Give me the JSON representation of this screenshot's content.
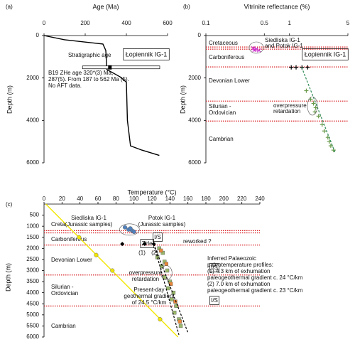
{
  "chart_data": [
    {
      "type": "line",
      "panel": "(a)",
      "xlabel": "Age (Ma)",
      "ylabel": "Depth (m)",
      "xlim": [
        0,
        600
      ],
      "xticks": [
        0,
        200,
        400,
        600
      ],
      "ylim": [
        0,
        6000
      ],
      "yticks": [
        0,
        2000,
        4000,
        6000
      ],
      "y_inverted": true,
      "x_axis_position": "top",
      "series": [
        {
          "name": "Stratigraphic age",
          "color": "#000000",
          "x": [
            0,
            100,
            286,
            300,
            305,
            370,
            400,
            405,
            420,
            475,
            560
          ],
          "values": [
            0,
            200,
            400,
            700,
            1600,
            1950,
            2200,
            4000,
            5200,
            5400,
            5650
          ]
        }
      ],
      "zhe": {
        "value": 320,
        "range": [
          187,
          562
        ],
        "depth": 1500
      },
      "well_label": "Łopiennik IG-1",
      "note": [
        "B19 ZHe age 320*(3) Ma,",
        "287(5). From 187 to 562 Ma (5).",
        "No AFT data."
      ]
    },
    {
      "type": "scatter",
      "panel": "(b)",
      "xlabel": "Vitrinite reflectance (%)",
      "ylabel": "Depth (m)",
      "xscale": "log",
      "xlim": [
        0.1,
        5
      ],
      "xticks": [
        0.1,
        0.5,
        1,
        5
      ],
      "ylim": [
        0,
        6000
      ],
      "yticks": [
        0,
        2000,
        4000,
        6000
      ],
      "y_inverted": true,
      "x_axis_position": "top",
      "layers": [
        "Cretaceous",
        "Carboniferous",
        "Devonian Lower",
        [
          "Silurian -",
          "Ordovician"
        ],
        "Cambrian"
      ],
      "boundaries": [
        540,
        640,
        1480,
        3090,
        4030
      ],
      "boundary_color": "#d7191c",
      "series": [
        {
          "kind": "points",
          "marker": "x",
          "color": "#cc33cc",
          "x": [
            0.369,
            0.399,
            0.432,
            0.38
          ],
          "values": [
            600,
            650,
            700,
            680
          ]
        },
        {
          "kind": "points",
          "marker": "+",
          "color": "#000000",
          "x": [
            1.05,
            1.2,
            1.41,
            1.65
          ],
          "values": [
            1500,
            1500,
            1500,
            1500
          ]
        },
        {
          "kind": "points",
          "marker": "+",
          "color": "#6a9a4a",
          "x": [
            1.59,
            1.79,
            1.94,
            2.06,
            2.02,
            2.23,
            2.46,
            2.61,
            2.88,
            2.99,
            3.12,
            3.37
          ],
          "values": [
            2600,
            3000,
            3200,
            3400,
            3600,
            3800,
            4200,
            4500,
            4800,
            5000,
            5200,
            5400
          ]
        },
        {
          "kind": "line",
          "dash": true,
          "color": "#2e8b57",
          "x": [
            1.4,
            3.5
          ],
          "values": [
            1500,
            5500
          ]
        }
      ],
      "well_label": "Łopiennik IG-1",
      "annotations": [
        [
          "Siedliska IG-1",
          "and Potok IG-1"
        ],
        [
          "overpressure",
          "retardation"
        ]
      ]
    },
    {
      "type": "scatter",
      "panel": "(c)",
      "xlabel": "Temperature (°C)",
      "ylabel": "Depth (m)",
      "xlim": [
        0,
        240
      ],
      "xticks": [
        0,
        20,
        40,
        60,
        80,
        100,
        120,
        140,
        160,
        180,
        200,
        220,
        240
      ],
      "ylim": [
        0,
        6000
      ],
      "yticks": [
        500,
        1000,
        1500,
        2000,
        2500,
        3000,
        3500,
        4000,
        4500,
        5000,
        5500,
        6000
      ],
      "y_inverted": true,
      "x_axis_position": "top",
      "layers": [
        "Creta.",
        "Carboniferous",
        "Devonian Lower",
        [
          "Silurian -",
          "Ordovician"
        ],
        "Cambrian"
      ],
      "boundaries": [
        1200,
        1300,
        1850,
        3200,
        4600
      ],
      "boundary_color": "#d7191c",
      "series": [
        {
          "kind": "line",
          "color": "#f2e600",
          "x": [
            2,
            149
          ],
          "values": [
            0,
            6000
          ]
        },
        {
          "kind": "points",
          "marker": "circle",
          "color": "#f2e600",
          "x": [
            39,
            58,
            76,
            129
          ],
          "values": [
            1500,
            2300,
            3000,
            5200
          ]
        },
        {
          "kind": "points",
          "marker": "circle",
          "color": "#4f81bd",
          "x": [
            90,
            94,
            98,
            100,
            96
          ],
          "values": [
            1050,
            1150,
            1200,
            1250,
            1100
          ]
        },
        {
          "kind": "points",
          "marker": "diamond",
          "color": "#000000",
          "x": [
            87,
            112,
            122
          ],
          "values": [
            1800,
            1800,
            1800
          ]
        },
        {
          "kind": "points",
          "marker": "square",
          "color": "#9ab86b",
          "x": [
            128,
            132,
            126,
            134,
            131,
            137,
            134,
            140,
            138,
            144,
            142,
            147,
            145,
            150,
            152
          ],
          "values": [
            2000,
            2200,
            2400,
            2600,
            2800,
            3000,
            3300,
            3500,
            3800,
            4000,
            4300,
            4600,
            4900,
            5200,
            5500
          ]
        },
        {
          "kind": "points",
          "marker": "square",
          "color": "#e8873a",
          "x": [
            130,
            136,
            141,
            146,
            151
          ],
          "values": [
            2100,
            2700,
            3600,
            4400,
            5300
          ]
        },
        {
          "kind": "line",
          "dash": true,
          "color": "#000000",
          "x": [
            122,
            150
          ],
          "values": [
            1800,
            5900
          ]
        },
        {
          "kind": "line",
          "dash": true,
          "color": "#000000",
          "x": [
            122,
            160
          ],
          "values": [
            1800,
            5800
          ]
        }
      ],
      "annotations": [
        [
          "Siedliska IG-1",
          "(Jurassic samples)"
        ],
        [
          "Potok IG-1",
          "(Jurassic samples)"
        ],
        "ZHe",
        "(1)",
        "(2)",
        "I/S",
        "reworked ?",
        [
          "overpressure",
          "retardation"
        ],
        "I/S",
        "I/S",
        [
          "Present-day",
          "geothermal gradient",
          "of 24.5 °C/km"
        ],
        [
          "Inferred Palaeozoic",
          "paleotemperature profiles:",
          "(1) 4.3 km of exhumation",
          "paleogeothermal gradient c. 24 °C/km",
          "(2) 7.0 km of exhumation",
          "paleogeothermal gradient c. 23 °C/km"
        ]
      ]
    }
  ]
}
